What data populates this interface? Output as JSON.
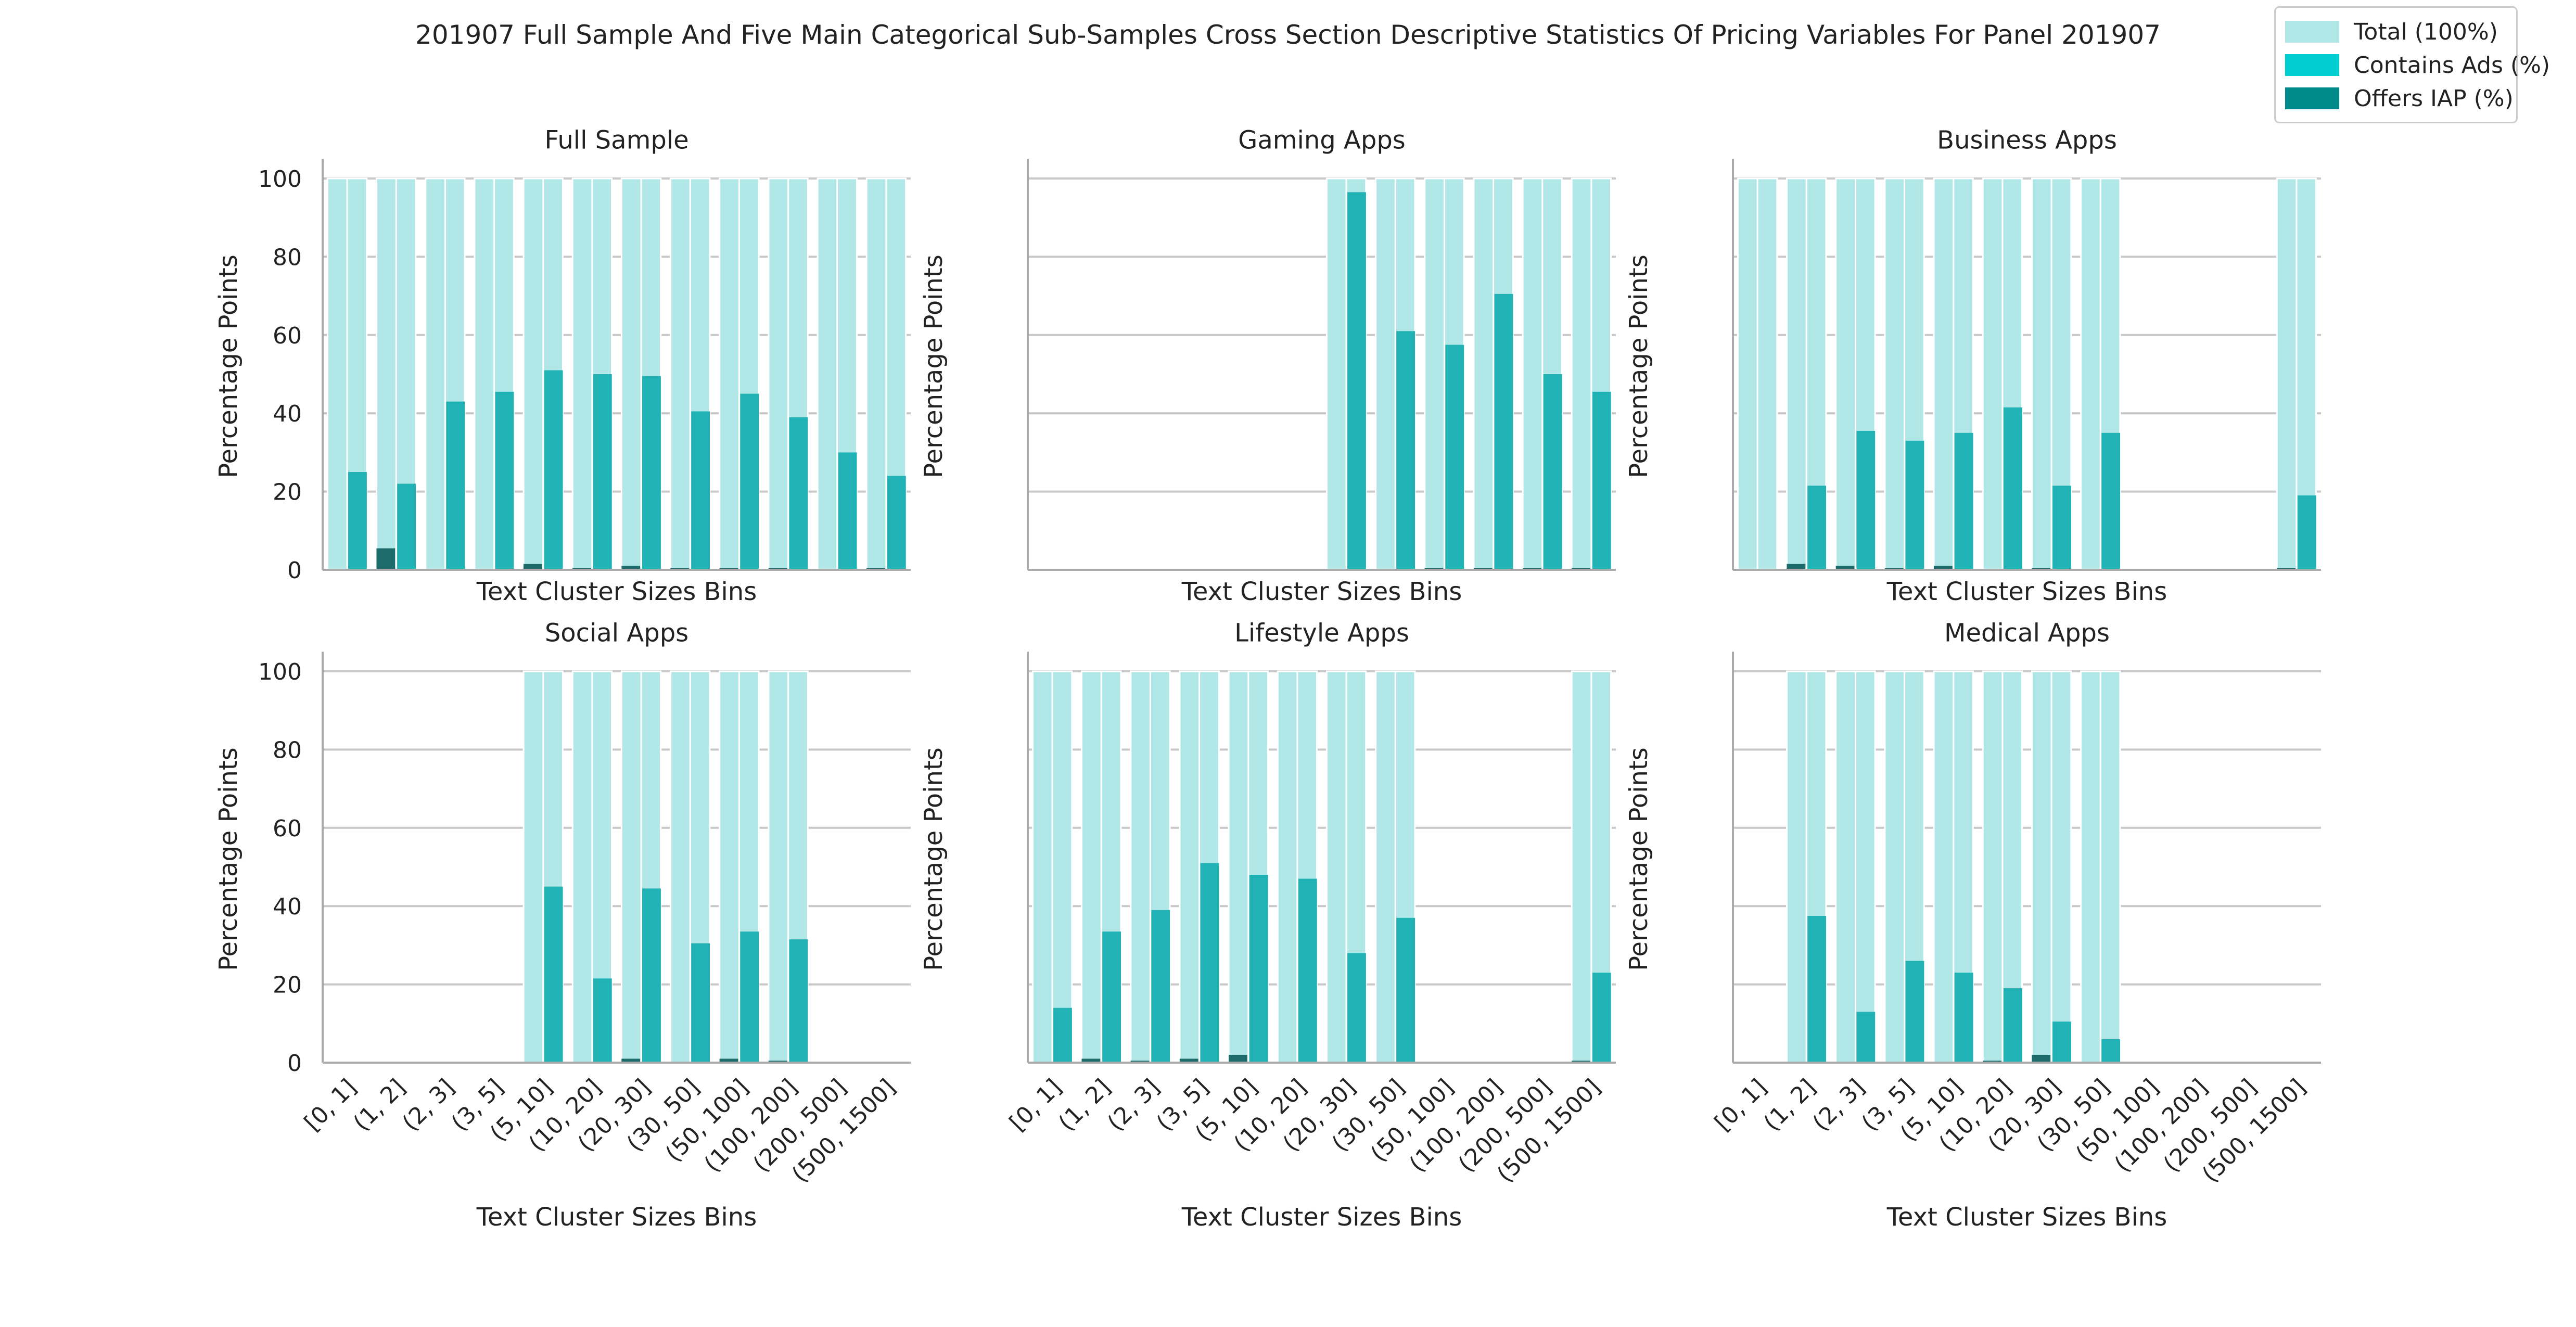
{
  "figure": {
    "title": "201907 Full Sample And Five Main Categorical Sub-Samples Cross Section Descriptive Statistics Of Pricing Variables For Panel 201907"
  },
  "legend": {
    "items": [
      {
        "label": "Total (100%)",
        "color": "#b2e7e8"
      },
      {
        "label": "Contains Ads (%)",
        "color": "#00ced1"
      },
      {
        "label": "Offers IAP (%)",
        "color": "#008b8b"
      }
    ]
  },
  "colors": {
    "total": "#b2e7e8",
    "ads": "#20b2b4",
    "iap": "#1d6b6b",
    "grid": "#c8c8c8",
    "axis": "#aaaaaa"
  },
  "chart_data": [
    {
      "type": "bar",
      "title": "Full Sample",
      "xlabel": "Text Cluster Sizes Bins",
      "ylabel": "Percentage Points",
      "ylim": [
        0,
        105
      ],
      "yticks": [
        "0",
        "20",
        "40",
        "60",
        "80",
        "100"
      ],
      "categories": [
        "[0, 1]",
        "(1, 2]",
        "(2, 3]",
        "(3, 5]",
        "(5, 10]",
        "(10, 20]",
        "(20, 30]",
        "(30, 50]",
        "(50, 100]",
        "(100, 200]",
        "(200, 500]",
        "(500, 1500]"
      ],
      "series": [
        {
          "name": "Total (100%)",
          "values": [
            100,
            100,
            100,
            100,
            100,
            100,
            100,
            100,
            100,
            100,
            100,
            100
          ]
        },
        {
          "name": "Contains Ads (%)",
          "values": [
            25,
            22,
            43,
            45.5,
            51,
            50,
            49.5,
            40.5,
            45,
            39,
            30,
            24
          ]
        },
        {
          "name": "Offers IAP (%)",
          "values": [
            0,
            5.5,
            0,
            0,
            1.5,
            0.5,
            1,
            0.5,
            0.5,
            0.5,
            0,
            0.5
          ]
        }
      ]
    },
    {
      "type": "bar",
      "title": "Gaming Apps",
      "xlabel": "Text Cluster Sizes Bins",
      "ylabel": "Percentage Points",
      "ylim": [
        0,
        105
      ],
      "categories": [
        "[0, 1]",
        "(1, 2]",
        "(2, 3]",
        "(3, 5]",
        "(5, 10]",
        "(10, 20]",
        "(20, 30]",
        "(30, 50]",
        "(50, 100]",
        "(100, 200]",
        "(200, 500]",
        "(500, 1500]"
      ],
      "series": [
        {
          "name": "Total (100%)",
          "values": [
            null,
            null,
            null,
            null,
            null,
            null,
            100,
            100,
            100,
            100,
            100,
            100
          ]
        },
        {
          "name": "Contains Ads (%)",
          "values": [
            null,
            null,
            null,
            null,
            null,
            null,
            96.5,
            61,
            57.5,
            70.5,
            50,
            45.5
          ]
        },
        {
          "name": "Offers IAP (%)",
          "values": [
            null,
            null,
            null,
            null,
            null,
            null,
            0,
            0,
            0.5,
            0.5,
            0.5,
            0.5
          ]
        }
      ]
    },
    {
      "type": "bar",
      "title": "Business Apps",
      "xlabel": "Text Cluster Sizes Bins",
      "ylabel": "Percentage Points",
      "ylim": [
        0,
        105
      ],
      "categories": [
        "[0, 1]",
        "(1, 2]",
        "(2, 3]",
        "(3, 5]",
        "(5, 10]",
        "(10, 20]",
        "(20, 30]",
        "(30, 50]",
        "(50, 100]",
        "(100, 200]",
        "(200, 500]",
        "(500, 1500]"
      ],
      "series": [
        {
          "name": "Total (100%)",
          "values": [
            100,
            100,
            100,
            100,
            100,
            100,
            100,
            100,
            null,
            null,
            null,
            100
          ]
        },
        {
          "name": "Contains Ads (%)",
          "values": [
            0,
            21.5,
            35.5,
            33,
            35,
            41.5,
            21.5,
            35,
            null,
            null,
            null,
            19
          ]
        },
        {
          "name": "Offers IAP (%)",
          "values": [
            0,
            1.5,
            1,
            0.5,
            1,
            0,
            0.5,
            0,
            null,
            null,
            null,
            0.5
          ]
        }
      ]
    },
    {
      "type": "bar",
      "title": "Social Apps",
      "xlabel": "Text Cluster Sizes Bins",
      "ylabel": "Percentage Points",
      "ylim": [
        0,
        105
      ],
      "yticks": [
        "0",
        "20",
        "40",
        "60",
        "80",
        "100"
      ],
      "categories": [
        "[0, 1]",
        "(1, 2]",
        "(2, 3]",
        "(3, 5]",
        "(5, 10]",
        "(10, 20]",
        "(20, 30]",
        "(30, 50]",
        "(50, 100]",
        "(100, 200]",
        "(200, 500]",
        "(500, 1500]"
      ],
      "series": [
        {
          "name": "Total (100%)",
          "values": [
            null,
            null,
            null,
            null,
            100,
            100,
            100,
            100,
            100,
            100,
            null,
            null
          ]
        },
        {
          "name": "Contains Ads (%)",
          "values": [
            null,
            null,
            null,
            null,
            45,
            21.5,
            44.5,
            30.5,
            33.5,
            31.5,
            null,
            null
          ]
        },
        {
          "name": "Offers IAP (%)",
          "values": [
            null,
            null,
            null,
            null,
            0,
            0,
            1,
            0,
            1,
            0.5,
            null,
            null
          ]
        }
      ]
    },
    {
      "type": "bar",
      "title": "Lifestyle Apps",
      "xlabel": "Text Cluster Sizes Bins",
      "ylabel": "Percentage Points",
      "ylim": [
        0,
        105
      ],
      "categories": [
        "[0, 1]",
        "(1, 2]",
        "(2, 3]",
        "(3, 5]",
        "(5, 10]",
        "(10, 20]",
        "(20, 30]",
        "(30, 50]",
        "(50, 100]",
        "(100, 200]",
        "(200, 500]",
        "(500, 1500]"
      ],
      "series": [
        {
          "name": "Total (100%)",
          "values": [
            100,
            100,
            100,
            100,
            100,
            100,
            100,
            100,
            null,
            null,
            null,
            100
          ]
        },
        {
          "name": "Contains Ads (%)",
          "values": [
            14,
            33.5,
            39,
            51,
            48,
            47,
            28,
            37,
            null,
            null,
            null,
            23
          ]
        },
        {
          "name": "Offers IAP (%)",
          "values": [
            0,
            1,
            0.5,
            1,
            2,
            0,
            0,
            0,
            null,
            null,
            null,
            0.5
          ]
        }
      ]
    },
    {
      "type": "bar",
      "title": "Medical Apps",
      "xlabel": "Text Cluster Sizes Bins",
      "ylabel": "Percentage Points",
      "ylim": [
        0,
        105
      ],
      "categories": [
        "[0, 1]",
        "(1, 2]",
        "(2, 3]",
        "(3, 5]",
        "(5, 10]",
        "(10, 20]",
        "(20, 30]",
        "(30, 50]",
        "(50, 100]",
        "(100, 200]",
        "(200, 500]",
        "(500, 1500]"
      ],
      "series": [
        {
          "name": "Total (100%)",
          "values": [
            null,
            100,
            100,
            100,
            100,
            100,
            100,
            100,
            null,
            null,
            null,
            null
          ]
        },
        {
          "name": "Contains Ads (%)",
          "values": [
            null,
            37.5,
            13,
            26,
            23,
            19,
            10.5,
            6,
            null,
            null,
            null,
            null
          ]
        },
        {
          "name": "Offers IAP (%)",
          "values": [
            null,
            0,
            0,
            0,
            0,
            0.5,
            2,
            0,
            null,
            null,
            null,
            null
          ]
        }
      ]
    }
  ]
}
